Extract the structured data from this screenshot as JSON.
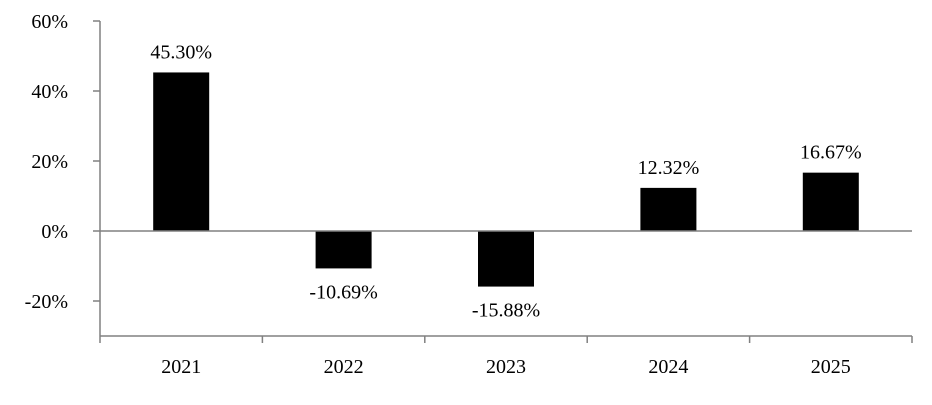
{
  "chart_data": {
    "type": "bar",
    "categories": [
      "2021",
      "2022",
      "2023",
      "2024",
      "2025"
    ],
    "values": [
      45.3,
      -10.69,
      -15.88,
      12.32,
      16.67
    ],
    "data_labels": [
      "45.30%",
      "-10.69%",
      "-15.88%",
      "12.32%",
      "16.67%"
    ],
    "yticks": [
      -20,
      0,
      20,
      40,
      60
    ],
    "ytick_labels": [
      "-20%",
      "0%",
      "20%",
      "40%",
      "60%"
    ],
    "ylim": [
      -30,
      60
    ],
    "title": "",
    "xlabel": "",
    "ylabel": "",
    "grid": false,
    "bar_color": "#000000",
    "axis_color": "#808080"
  }
}
